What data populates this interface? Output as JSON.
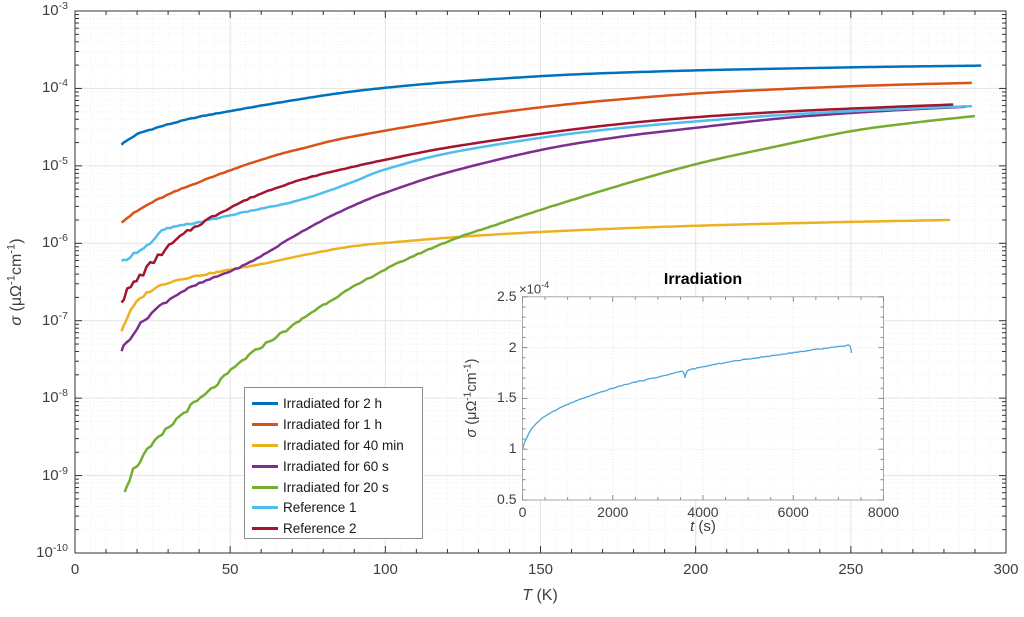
{
  "figure": {
    "background": "#ffffff",
    "frame_color": "#333333",
    "grid_major_color": "#e3e3e3",
    "grid_minor_color": "#f0f0f0"
  },
  "labels": {
    "main_xlabel": [
      {
        "text": "T",
        "italic": true
      },
      {
        "text": " (K)"
      }
    ],
    "main_ylabel": [
      {
        "text": "σ",
        "italic": true
      },
      {
        "text": " (μΩ"
      },
      {
        "text": "-1",
        "sup": true
      },
      {
        "text": "cm"
      },
      {
        "text": "-1",
        "sup": true
      },
      {
        "text": ")"
      }
    ],
    "inset_title": "Irradiation",
    "inset_xlabel": [
      {
        "text": "t",
        "italic": true
      },
      {
        "text": " (s)"
      }
    ],
    "inset_ylabel": [
      {
        "text": "σ",
        "italic": true
      },
      {
        "text": " (μΩ"
      },
      {
        "text": "-1",
        "sup": true
      },
      {
        "text": "cm"
      },
      {
        "text": "-1",
        "sup": true
      },
      {
        "text": ")"
      }
    ],
    "inset_y_multiplier": [
      {
        "text": "×10"
      },
      {
        "text": "-4",
        "sup": true
      }
    ]
  },
  "chart_data": [
    {
      "id": "main",
      "type": "line",
      "xlabel": "T (K)",
      "ylabel": "σ (μΩ⁻¹cm⁻¹)",
      "x_axis": {
        "min": 0,
        "max": 300,
        "ticks": [
          0,
          50,
          100,
          150,
          200,
          250,
          300
        ],
        "minor_step": 10
      },
      "y_axis": {
        "scale": "log",
        "min": 1e-10,
        "max": 0.001,
        "tick_exponents": [
          -3,
          -4,
          -5,
          -6,
          -7,
          -8,
          -9,
          -10
        ]
      },
      "grid": true,
      "legend_position": "inside-lower-left",
      "series": [
        {
          "name": "Irradiated for 2 h",
          "color": "#0072BD",
          "noise": 0.01,
          "noise_decay": 28,
          "points": [
            [
              15,
              1.9e-05
            ],
            [
              20,
              2.55e-05
            ],
            [
              25,
              3e-05
            ],
            [
              32,
              3.6e-05
            ],
            [
              40,
              4.3e-05
            ],
            [
              50,
              5.1e-05
            ],
            [
              60,
              6e-05
            ],
            [
              70,
              7e-05
            ],
            [
              80,
              8.1e-05
            ],
            [
              90,
              9.2e-05
            ],
            [
              100,
              0.000102
            ],
            [
              115,
              0.000116
            ],
            [
              130,
              0.000128
            ],
            [
              150,
              0.000144
            ],
            [
              170,
              0.000157
            ],
            [
              200,
              0.000171
            ],
            [
              230,
              0.000181
            ],
            [
              260,
              0.00019
            ],
            [
              292,
              0.000197
            ]
          ]
        },
        {
          "name": "Irradiated for 1 h",
          "color": "#D95319",
          "noise": 0.012,
          "noise_decay": 28,
          "points": [
            [
              15,
              1.9e-06
            ],
            [
              20,
              2.6e-06
            ],
            [
              25,
              3.4e-06
            ],
            [
              32,
              4.6e-06
            ],
            [
              40,
              6.2e-06
            ],
            [
              48,
              8.2e-06
            ],
            [
              55,
              1.03e-05
            ],
            [
              65,
              1.38e-05
            ],
            [
              75,
              1.75e-05
            ],
            [
              85,
              2.2e-05
            ],
            [
              100,
              2.85e-05
            ],
            [
              115,
              3.6e-05
            ],
            [
              130,
              4.5e-05
            ],
            [
              150,
              5.7e-05
            ],
            [
              170,
              6.9e-05
            ],
            [
              200,
              8.6e-05
            ],
            [
              230,
              9.9e-05
            ],
            [
              260,
              0.00011
            ],
            [
              289,
              0.000118
            ]
          ]
        },
        {
          "name": "Irradiated for 40 min",
          "color": "#EDB120",
          "noise": 0.022,
          "noise_decay": 28,
          "points": [
            [
              15,
              7.5e-08
            ],
            [
              18,
              1.35e-07
            ],
            [
              22,
              2.1e-07
            ],
            [
              28,
              2.9e-07
            ],
            [
              35,
              3.5e-07
            ],
            [
              48,
              4.4e-07
            ],
            [
              60,
              5.4e-07
            ],
            [
              75,
              7.2e-07
            ],
            [
              90,
              9.2e-07
            ],
            [
              105,
              1.05e-06
            ],
            [
              125,
              1.22e-06
            ],
            [
              150,
              1.4e-06
            ],
            [
              180,
              1.58e-06
            ],
            [
              210,
              1.73e-06
            ],
            [
              245,
              1.87e-06
            ],
            [
              282,
              2e-06
            ]
          ]
        },
        {
          "name": "Irradiated for 60 s",
          "color": "#7E2F8E",
          "noise": 0.03,
          "noise_decay": 28,
          "points": [
            [
              15,
              4.2e-08
            ],
            [
              20,
              8e-08
            ],
            [
              26,
              1.4e-07
            ],
            [
              33,
              2.2e-07
            ],
            [
              40,
              3e-07
            ],
            [
              47,
              3.9e-07
            ],
            [
              54,
              5.1e-07
            ],
            [
              62,
              7.6e-07
            ],
            [
              70,
              1.2e-06
            ],
            [
              80,
              2e-06
            ],
            [
              90,
              3.1e-06
            ],
            [
              100,
              4.5e-06
            ],
            [
              120,
              8.2e-06
            ],
            [
              150,
              1.6e-05
            ],
            [
              175,
              2.35e-05
            ],
            [
              200,
              3.1e-05
            ],
            [
              230,
              4.2e-05
            ],
            [
              260,
              5.1e-05
            ],
            [
              287,
              5.8e-05
            ]
          ]
        },
        {
          "name": "Irradiated for 20 s",
          "color": "#77AC30",
          "noise": 0.05,
          "noise_decay": 45,
          "points": [
            [
              16,
              6.8e-10
            ],
            [
              20,
              1.4e-09
            ],
            [
              27,
              3e-09
            ],
            [
              35,
              6.5e-09
            ],
            [
              43,
              1.2e-08
            ],
            [
              55,
              3.3e-08
            ],
            [
              69,
              8e-08
            ],
            [
              80,
              1.6e-07
            ],
            [
              100,
              4.6e-07
            ],
            [
              120,
              1.05e-06
            ],
            [
              135,
              1.7e-06
            ],
            [
              150,
              2.7e-06
            ],
            [
              175,
              5.5e-06
            ],
            [
              200,
              1.05e-05
            ],
            [
              225,
              1.75e-05
            ],
            [
              250,
              2.8e-05
            ],
            [
              270,
              3.6e-05
            ],
            [
              290,
              4.4e-05
            ]
          ]
        },
        {
          "name": "Reference 1",
          "color": "#4DBEEE",
          "noise": 0.02,
          "noise_decay": 28,
          "points": [
            [
              15,
              5.7e-07
            ],
            [
              20,
              7.8e-07
            ],
            [
              25,
              1.05e-06
            ],
            [
              28,
              1.45e-06
            ],
            [
              33,
              1.65e-06
            ],
            [
              42,
              1.95e-06
            ],
            [
              50,
              2.3e-06
            ],
            [
              60,
              2.8e-06
            ],
            [
              70,
              3.4e-06
            ],
            [
              80,
              4.5e-06
            ],
            [
              90,
              6.3e-06
            ],
            [
              100,
              9e-06
            ],
            [
              120,
              1.45e-05
            ],
            [
              150,
              2.3e-05
            ],
            [
              175,
              3.05e-05
            ],
            [
              200,
              3.75e-05
            ],
            [
              230,
              4.6e-05
            ],
            [
              260,
              5.3e-05
            ],
            [
              289,
              5.9e-05
            ]
          ]
        },
        {
          "name": "Reference 2",
          "color": "#A2142F",
          "noise": 0.06,
          "noise_decay": 22,
          "points": [
            [
              15,
              1.9e-07
            ],
            [
              18,
              2.7e-07
            ],
            [
              22,
              4.2e-07
            ],
            [
              28,
              7.5e-07
            ],
            [
              35,
              1.3e-06
            ],
            [
              42,
              1.95e-06
            ],
            [
              50,
              2.9e-06
            ],
            [
              60,
              4.4e-06
            ],
            [
              70,
              6.1e-06
            ],
            [
              80,
              7.9e-06
            ],
            [
              90,
              9.8e-06
            ],
            [
              100,
              1.2e-05
            ],
            [
              120,
              1.72e-05
            ],
            [
              150,
              2.6e-05
            ],
            [
              175,
              3.45e-05
            ],
            [
              200,
              4.25e-05
            ],
            [
              230,
              5.05e-05
            ],
            [
              260,
              5.7e-05
            ],
            [
              283,
              6.2e-05
            ]
          ]
        }
      ]
    },
    {
      "id": "inset",
      "type": "line",
      "title": "Irradiation",
      "xlabel": "t (s)",
      "ylabel": "σ (μΩ⁻¹cm⁻¹)",
      "y_unit_multiplier": 0.0001,
      "x_axis": {
        "min": 0,
        "max": 8000,
        "ticks": [
          0,
          2000,
          4000,
          6000,
          8000
        ],
        "minor_step": 500
      },
      "y_axis": {
        "scale": "linear",
        "min": 0.5,
        "max": 2.5,
        "ticks": [
          0.5,
          1,
          1.5,
          2,
          2.5
        ],
        "minor_step": 0.1
      },
      "grid": true,
      "series": [
        {
          "name": "sigma-vs-time",
          "color": "#4BA3DB",
          "noise": 0.004,
          "points": [
            [
              0,
              0.99
            ],
            [
              40,
              1.06
            ],
            [
              100,
              1.12
            ],
            [
              200,
              1.2
            ],
            [
              350,
              1.27
            ],
            [
              550,
              1.34
            ],
            [
              800,
              1.4
            ],
            [
              1100,
              1.46
            ],
            [
              1400,
              1.51
            ],
            [
              1700,
              1.555
            ],
            [
              2000,
              1.6
            ],
            [
              2400,
              1.65
            ],
            [
              2800,
              1.69
            ],
            [
              3200,
              1.73
            ],
            [
              3550,
              1.765
            ],
            [
              3600,
              1.7
            ],
            [
              3650,
              1.77
            ],
            [
              4000,
              1.81
            ],
            [
              4400,
              1.845
            ],
            [
              4800,
              1.875
            ],
            [
              5200,
              1.9
            ],
            [
              5600,
              1.925
            ],
            [
              6000,
              1.95
            ],
            [
              6400,
              1.975
            ],
            [
              6800,
              2.0
            ],
            [
              7100,
              2.015
            ],
            [
              7250,
              2.02
            ],
            [
              7290,
              1.95
            ]
          ]
        }
      ]
    }
  ]
}
